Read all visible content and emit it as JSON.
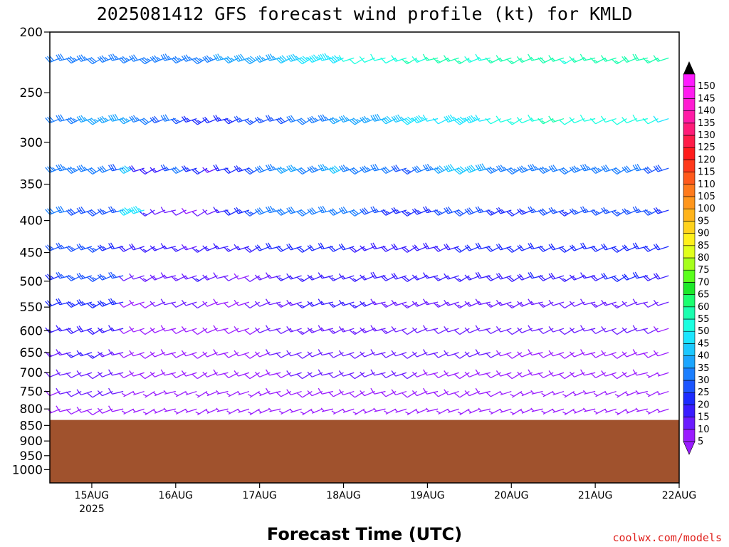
{
  "chart_data": {
    "type": "wind-barb-profile",
    "title": "2025081412 GFS forecast wind profile (kt) for KMLD",
    "xlabel": "Forecast Time (UTC)",
    "ylabel": "",
    "credit": "coolwx.com/models",
    "y_scale": "log-pressure",
    "y_axis_inverted": true,
    "ylim_hPa": [
      1050,
      200
    ],
    "y_ticks": [
      200,
      250,
      300,
      350,
      400,
      450,
      500,
      550,
      600,
      650,
      700,
      750,
      800,
      850,
      900,
      950,
      1000
    ],
    "x_ticks": [
      {
        "label": "15AUG",
        "sublabel": "2025",
        "hour": 12
      },
      {
        "label": "16AUG",
        "sublabel": "",
        "hour": 36
      },
      {
        "label": "17AUG",
        "sublabel": "",
        "hour": 60
      },
      {
        "label": "18AUG",
        "sublabel": "",
        "hour": 84
      },
      {
        "label": "19AUG",
        "sublabel": "",
        "hour": 108
      },
      {
        "label": "20AUG",
        "sublabel": "",
        "hour": 132
      },
      {
        "label": "21AUG",
        "sublabel": "",
        "hour": 156
      },
      {
        "label": "22AUG",
        "sublabel": "",
        "hour": 180
      }
    ],
    "xlim_hours": [
      0,
      180
    ],
    "time_step_hours": 3,
    "ground_color": "#a0522d",
    "surface_pressure_hPa": 833,
    "colorbar": {
      "levels": [
        5,
        10,
        15,
        20,
        25,
        30,
        35,
        40,
        45,
        50,
        55,
        60,
        65,
        70,
        75,
        80,
        85,
        90,
        95,
        100,
        105,
        110,
        115,
        120,
        125,
        130,
        135,
        140,
        145,
        150
      ],
      "colors": [
        "#9a1cff",
        "#6b1cff",
        "#3a1cff",
        "#1c2bff",
        "#1c55ff",
        "#1c7fff",
        "#1ca6ff",
        "#1cc8ff",
        "#1ce5ff",
        "#1cffe0",
        "#1cffb0",
        "#1cff70",
        "#1ce82a",
        "#5aff1c",
        "#a6ff1c",
        "#e0ff1c",
        "#fff01c",
        "#ffd21c",
        "#ffb41c",
        "#ff961c",
        "#ff7a1c",
        "#ff5a1c",
        "#ff3a1c",
        "#ff1c1c",
        "#ff1c48",
        "#ff1c78",
        "#ff1ca6",
        "#ff1cd2",
        "#ff1cf0",
        "#ff1cff"
      ]
    },
    "levels_hPa": [
      220,
      275,
      330,
      385,
      440,
      490,
      540,
      595,
      650,
      700,
      750,
      800
    ],
    "series": [
      {
        "level_hPa": 220,
        "values_kt": [
          38,
          32,
          32,
          33,
          33,
          32,
          33,
          33,
          33,
          32,
          33,
          33,
          34,
          33,
          33,
          34,
          34,
          35,
          36,
          38,
          38,
          37,
          37,
          40,
          44,
          46,
          45,
          46,
          47,
          50,
          52,
          51,
          50,
          52,
          54,
          55,
          54,
          55,
          55,
          56,
          56,
          54,
          53,
          55,
          56,
          56,
          55,
          57,
          58,
          56,
          54,
          55,
          55,
          56,
          56,
          57,
          58,
          58,
          56,
          55,
          54
        ]
      },
      {
        "level_hPa": 275,
        "values_kt": [
          33,
          31,
          30,
          34,
          37,
          37,
          37,
          38,
          36,
          33,
          32,
          28,
          30,
          25,
          24,
          23,
          22,
          23,
          24,
          25,
          26,
          27,
          27,
          28,
          30,
          32,
          33,
          34,
          35,
          36,
          37,
          36,
          38,
          40,
          43,
          46,
          47,
          48,
          48,
          47,
          46,
          47,
          48,
          50,
          52,
          53,
          52,
          54,
          55,
          55,
          52,
          51,
          52,
          52,
          52,
          52,
          52,
          52,
          50,
          48,
          46
        ]
      },
      {
        "level_hPa": 330,
        "values_kt": [
          31,
          33,
          34,
          34,
          34,
          32,
          31,
          28,
          44,
          18,
          18,
          17,
          25,
          30,
          24,
          22,
          14,
          22,
          20,
          24,
          28,
          30,
          34,
          36,
          36,
          30,
          34,
          37,
          42,
          33,
          31,
          33,
          30,
          30,
          28,
          26,
          30,
          34,
          38,
          42,
          42,
          40,
          38,
          34,
          34,
          34,
          33,
          33,
          33,
          32,
          32,
          33,
          33,
          33,
          32,
          31,
          30,
          30,
          29,
          28,
          28
        ]
      },
      {
        "level_hPa": 385,
        "values_kt": [
          30,
          30,
          30,
          29,
          28,
          28,
          27,
          27,
          45,
          45,
          16,
          12,
          11,
          10,
          8,
          10,
          12,
          15,
          20,
          24,
          26,
          30,
          34,
          30,
          30,
          31,
          30,
          30,
          30,
          31,
          30,
          29,
          26,
          24,
          23,
          23,
          24,
          24,
          27,
          29,
          28,
          28,
          26,
          24,
          23,
          22,
          24,
          26,
          28,
          26,
          24,
          25,
          26,
          26,
          26,
          25,
          25,
          25,
          25,
          23,
          22
        ]
      },
      {
        "level_hPa": 440,
        "values_kt": [
          26,
          27,
          27,
          27,
          26,
          26,
          24,
          22,
          18,
          18,
          16,
          16,
          16,
          16,
          14,
          15,
          16,
          17,
          16,
          16,
          18,
          20,
          20,
          20,
          22,
          22,
          22,
          21,
          20,
          20,
          18,
          17,
          18,
          18,
          18,
          18,
          18,
          18,
          19,
          19,
          20,
          20,
          20,
          20,
          20,
          20,
          21,
          21,
          20,
          20,
          20,
          20,
          21,
          21,
          22,
          22,
          22,
          22,
          21,
          21,
          20
        ]
      },
      {
        "level_hPa": 490,
        "values_kt": [
          22,
          24,
          26,
          26,
          27,
          26,
          26,
          25,
          10,
          12,
          13,
          14,
          13,
          13,
          14,
          15,
          13,
          11,
          10,
          9,
          11,
          13,
          14,
          15,
          16,
          16,
          17,
          17,
          17,
          16,
          16,
          17,
          18,
          18,
          18,
          18,
          17,
          16,
          16,
          16,
          16,
          17,
          18,
          18,
          18,
          18,
          19,
          20,
          19,
          18,
          17,
          15,
          16,
          18,
          20,
          20,
          20,
          20,
          19,
          19,
          18
        ]
      },
      {
        "level_hPa": 540,
        "values_kt": [
          18,
          20,
          22,
          24,
          24,
          23,
          23,
          23,
          8,
          8,
          9,
          10,
          10,
          10,
          10,
          10,
          8,
          8,
          8,
          8,
          10,
          11,
          12,
          13,
          14,
          15,
          16,
          16,
          16,
          15,
          15,
          15,
          14,
          14,
          13,
          13,
          13,
          13,
          13,
          13,
          14,
          14,
          14,
          14,
          14,
          14,
          13,
          13,
          13,
          12,
          12,
          12,
          12,
          13,
          13,
          13,
          12,
          12,
          11,
          10,
          10
        ]
      },
      {
        "level_hPa": 595,
        "values_kt": [
          14,
          16,
          17,
          18,
          18,
          18,
          17,
          17,
          8,
          8,
          9,
          9,
          9,
          9,
          9,
          9,
          8,
          8,
          8,
          8,
          9,
          10,
          11,
          12,
          13,
          13,
          14,
          14,
          14,
          14,
          13,
          13,
          13,
          13,
          12,
          12,
          12,
          12,
          12,
          12,
          12,
          12,
          12,
          12,
          12,
          12,
          11,
          11,
          11,
          10,
          10,
          10,
          10,
          10,
          10,
          10,
          10,
          10,
          10,
          9,
          9
        ]
      },
      {
        "level_hPa": 650,
        "values_kt": [
          12,
          13,
          14,
          15,
          15,
          15,
          14,
          14,
          8,
          8,
          8,
          8,
          8,
          8,
          8,
          8,
          8,
          8,
          8,
          8,
          8,
          9,
          10,
          10,
          11,
          11,
          12,
          12,
          12,
          11,
          11,
          11,
          11,
          11,
          11,
          10,
          10,
          10,
          10,
          10,
          10,
          10,
          10,
          10,
          9,
          9,
          9,
          9,
          9,
          8,
          8,
          8,
          8,
          8,
          8,
          8,
          8,
          8,
          8,
          8,
          8
        ]
      },
      {
        "level_hPa": 700,
        "values_kt": [
          10,
          11,
          12,
          12,
          12,
          12,
          12,
          12,
          8,
          8,
          8,
          8,
          8,
          8,
          8,
          8,
          8,
          8,
          8,
          8,
          8,
          8,
          9,
          9,
          10,
          10,
          10,
          10,
          10,
          10,
          10,
          10,
          10,
          10,
          10,
          10,
          9,
          9,
          9,
          9,
          9,
          9,
          9,
          9,
          9,
          8,
          8,
          8,
          8,
          8,
          8,
          8,
          8,
          8,
          8,
          8,
          8,
          8,
          7,
          7,
          7
        ]
      },
      {
        "level_hPa": 750,
        "values_kt": [
          8,
          9,
          10,
          10,
          10,
          10,
          10,
          10,
          7,
          7,
          7,
          7,
          7,
          7,
          7,
          7,
          7,
          7,
          7,
          7,
          7,
          7,
          8,
          8,
          8,
          8,
          8,
          8,
          8,
          8,
          8,
          8,
          8,
          8,
          8,
          8,
          8,
          8,
          8,
          8,
          8,
          8,
          8,
          8,
          7,
          7,
          7,
          7,
          7,
          7,
          7,
          7,
          7,
          7,
          7,
          7,
          7,
          7,
          7,
          7,
          7
        ]
      },
      {
        "level_hPa": 800,
        "values_kt": [
          7,
          7,
          8,
          8,
          8,
          8,
          8,
          8,
          6,
          6,
          6,
          6,
          6,
          6,
          6,
          6,
          6,
          6,
          6,
          6,
          6,
          6,
          7,
          7,
          7,
          7,
          7,
          7,
          7,
          7,
          7,
          7,
          7,
          7,
          7,
          7,
          7,
          7,
          7,
          7,
          7,
          7,
          7,
          7,
          6,
          6,
          6,
          6,
          6,
          6,
          6,
          6,
          6,
          6,
          6,
          6,
          6,
          6,
          6,
          6,
          6
        ]
      }
    ]
  }
}
